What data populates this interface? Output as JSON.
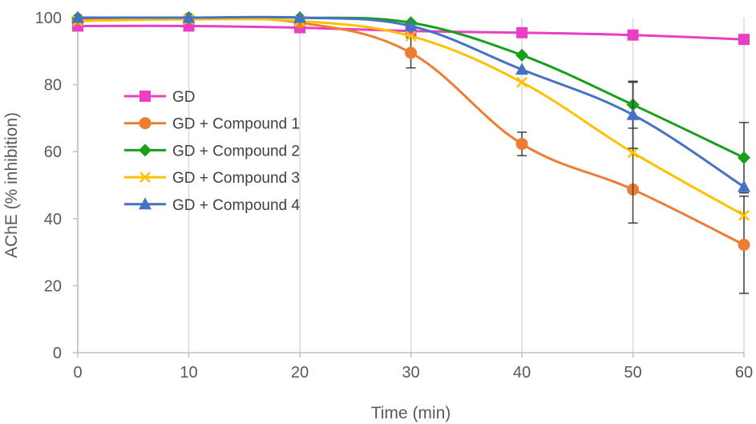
{
  "chart_data": {
    "type": "line",
    "title": "",
    "xlabel": "Time (min)",
    "ylabel": "AChE (% inhibition)",
    "xlim": [
      0,
      60
    ],
    "ylim": [
      0,
      100
    ],
    "xticks": [
      0,
      10,
      20,
      30,
      40,
      50,
      60
    ],
    "yticks": [
      0,
      20,
      40,
      60,
      80,
      100
    ],
    "grid": "vertical",
    "legend_position": "center-left",
    "x": [
      0,
      10,
      20,
      30,
      40,
      50,
      60
    ],
    "series": [
      {
        "name": "GD",
        "color": "#E83FC5",
        "marker": "square",
        "values": [
          97.5,
          97.5,
          97,
          96,
          95.5,
          94.8,
          93.5
        ],
        "errors": [
          0,
          0,
          0,
          0,
          0,
          0,
          0
        ]
      },
      {
        "name": "GD + Compound 1",
        "color": "#ED7D31",
        "marker": "circle",
        "values": [
          99.5,
          99.8,
          98.5,
          89.5,
          62.3,
          48.7,
          32.2
        ],
        "errors": [
          0,
          0,
          0,
          4.5,
          3.5,
          0,
          14.5
        ]
      },
      {
        "name": "GD + Compound 2",
        "color": "#18A01A",
        "marker": "diamond",
        "values": [
          100,
          100,
          100,
          98.5,
          88.8,
          74,
          58.2
        ],
        "errors": [
          0,
          0,
          0,
          0,
          0,
          7,
          10.5
        ]
      },
      {
        "name": "GD + Compound 3",
        "color": "#FFC000",
        "marker": "x",
        "values": [
          99,
          99.5,
          99,
          94.5,
          80.7,
          59.7,
          41
        ],
        "errors": [
          0,
          0,
          0,
          0,
          0,
          21,
          0
        ]
      },
      {
        "name": "GD + Compound 4",
        "color": "#4472C4",
        "marker": "triangle",
        "values": [
          100,
          100,
          100,
          97.5,
          84.5,
          71,
          49.5
        ],
        "errors": [
          0,
          0,
          0,
          0,
          0,
          10,
          0
        ]
      }
    ]
  }
}
